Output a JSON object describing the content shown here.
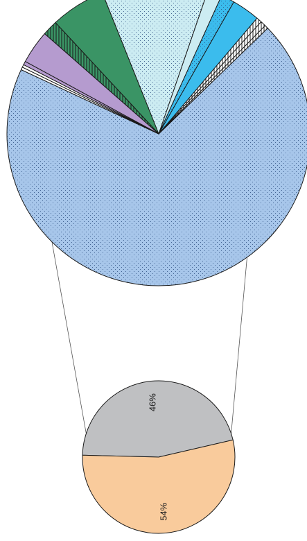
{
  "chart_data": [
    {
      "type": "pie",
      "role": "main",
      "slices": [
        {
          "value": 72.1,
          "color": "#a7c6ea",
          "pattern": "dots"
        },
        {
          "value": 0.4,
          "color": "#ffffff",
          "pattern": "vlines"
        },
        {
          "value": 0.6,
          "color": "#ffffff",
          "pattern": "vlines"
        },
        {
          "value": 0.6,
          "color": "#ffffff",
          "pattern": "vlines"
        },
        {
          "value": 3.1,
          "color": "#3bbced",
          "pattern": "none"
        },
        {
          "value": 1.5,
          "color": "#3bbced",
          "pattern": "dots"
        },
        {
          "value": 1.6,
          "color": "#ccecf2",
          "pattern": "none"
        },
        {
          "value": 11.8,
          "color": "#ccecf2",
          "pattern": "dots"
        },
        {
          "value": 6.1,
          "color": "#3a9465",
          "pattern": "none"
        },
        {
          "value": 1.7,
          "color": "#3a9465",
          "pattern": "vlines"
        },
        {
          "value": 3.7,
          "color": "#b59bcf",
          "pattern": "none"
        },
        {
          "value": 0.4,
          "color": "#b59bcf",
          "pattern": "none"
        },
        {
          "value": 0.3,
          "color": "#ffffff",
          "pattern": "none"
        },
        {
          "value": 0.3,
          "color": "#ffffff",
          "pattern": "none"
        }
      ]
    },
    {
      "type": "pie",
      "role": "breakdown",
      "slices": [
        {
          "value": 46,
          "label": "46%",
          "color": "#bfc0c2"
        },
        {
          "value": 54,
          "label": "54%",
          "color": "#f9cb9c"
        }
      ]
    }
  ]
}
